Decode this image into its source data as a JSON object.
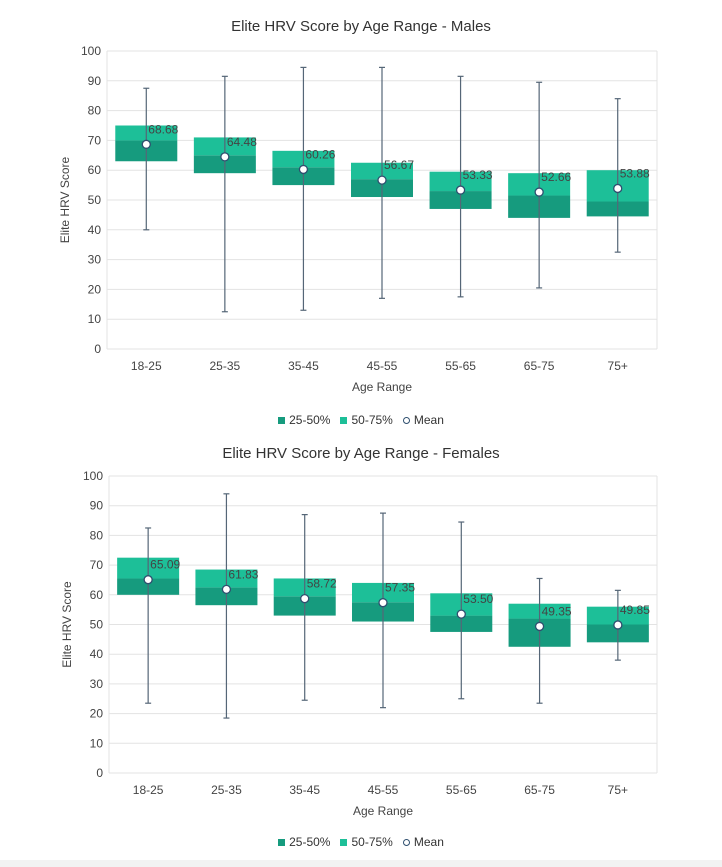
{
  "charts": [
    {
      "title": "Elite HRV Score by Age Range - Males",
      "legend": [
        "25-50%",
        "50-75%",
        "Mean"
      ]
    },
    {
      "title": "Elite HRV Score by Age Range - Females",
      "legend": [
        "25-50%",
        "50-75%",
        "Mean"
      ]
    }
  ],
  "colors": {
    "q2": "#169b7e",
    "q3": "#1dbf98",
    "whisker": "#556677",
    "mean_stroke": "#2f4f6f",
    "grid": "#e3e3e3"
  },
  "chart_data": [
    {
      "type": "box",
      "title": "Elite HRV Score by Age Range - Males",
      "xlabel": "Age Range",
      "ylabel": "Elite HRV Score",
      "ylim": [
        0,
        100
      ],
      "yticks": [
        0,
        10,
        20,
        30,
        40,
        50,
        60,
        70,
        80,
        90,
        100
      ],
      "categories": [
        "18-25",
        "25-35",
        "35-45",
        "45-55",
        "55-65",
        "65-75",
        "75+"
      ],
      "min": [
        40,
        12.5,
        13,
        17,
        17.5,
        20.5,
        32.5
      ],
      "q1": [
        63,
        59,
        55,
        51,
        47,
        44,
        44.5
      ],
      "median": [
        70,
        65,
        61,
        57,
        53,
        51.5,
        49.5
      ],
      "q3": [
        75,
        71,
        66.5,
        62.5,
        59.5,
        59,
        60
      ],
      "max": [
        87.5,
        91.5,
        94.5,
        94.5,
        91.5,
        89.5,
        84
      ],
      "mean": [
        68.68,
        64.48,
        60.26,
        56.67,
        53.33,
        52.66,
        53.88
      ],
      "mean_labels": [
        "68.68",
        "64.48",
        "60.26",
        "56.67",
        "53.33",
        "52.66",
        "53.88"
      ],
      "series": [
        {
          "name": "25-50%"
        },
        {
          "name": "50-75%"
        },
        {
          "name": "Mean"
        }
      ],
      "legend_position": "bottom",
      "grid": true
    },
    {
      "type": "box",
      "title": "Elite HRV Score by Age Range - Females",
      "xlabel": "Age Range",
      "ylabel": "Elite HRV Score",
      "ylim": [
        0,
        100
      ],
      "yticks": [
        0,
        10,
        20,
        30,
        40,
        50,
        60,
        70,
        80,
        90,
        100
      ],
      "categories": [
        "18-25",
        "25-35",
        "35-45",
        "45-55",
        "55-65",
        "65-75",
        "75+"
      ],
      "min": [
        23.5,
        18.5,
        24.5,
        22,
        25,
        23.5,
        38
      ],
      "q1": [
        60,
        56.5,
        53,
        51,
        47.5,
        42.5,
        44
      ],
      "median": [
        65.5,
        62.5,
        59.5,
        57.5,
        53,
        52,
        50
      ],
      "q3": [
        72.5,
        68.5,
        65.5,
        64,
        60.5,
        57,
        56
      ],
      "max": [
        82.5,
        94,
        87,
        87.5,
        84.5,
        65.5,
        61.5
      ],
      "mean": [
        65.09,
        61.83,
        58.72,
        57.35,
        53.5,
        49.35,
        49.85
      ],
      "mean_labels": [
        "65.09",
        "61.83",
        "58.72",
        "57.35",
        "53.50",
        "49.35",
        "49.85"
      ],
      "series": [
        {
          "name": "25-50%"
        },
        {
          "name": "50-75%"
        },
        {
          "name": "Mean"
        }
      ],
      "legend_position": "bottom",
      "grid": true
    }
  ]
}
